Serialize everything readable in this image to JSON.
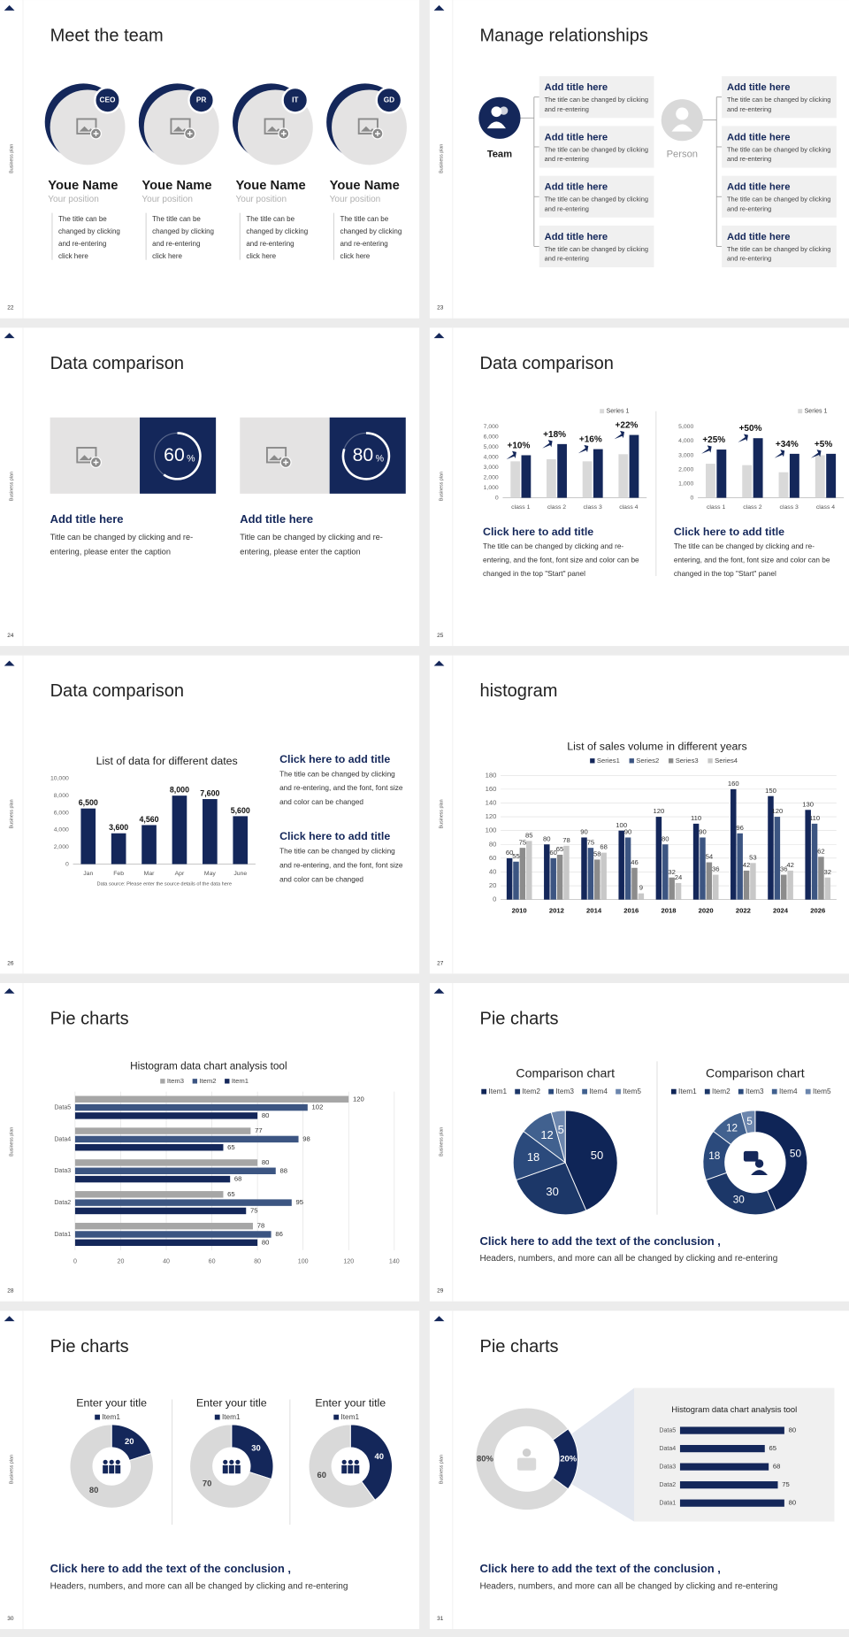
{
  "slides": [
    {
      "number": "22",
      "side_label": "Business plan",
      "title": "Meet the team",
      "members": [
        {
          "badge": "CEO",
          "name": "Youe Name",
          "position": "Your position",
          "text": [
            "The title can be",
            "changed by clicking",
            "and re-entering",
            "click here"
          ]
        },
        {
          "badge": "PR",
          "name": "Youe Name",
          "position": "Your position",
          "text": [
            "The title can be",
            "changed by clicking",
            "and re-entering",
            "click here"
          ]
        },
        {
          "badge": "IT",
          "name": "Youe Name",
          "position": "Your position",
          "text": [
            "The title can be",
            "changed by clicking",
            "and re-entering",
            "click here"
          ]
        },
        {
          "badge": "GD",
          "name": "Youe Name",
          "position": "Your position",
          "text": [
            "The title can be",
            "changed by clicking",
            "and re-entering",
            "click here"
          ]
        }
      ]
    },
    {
      "number": "23",
      "side_label": "Business plan",
      "title": "Manage relationships",
      "left_label": "Team",
      "right_label": "Person",
      "left_items": [
        {
          "title": "Add title here",
          "text": [
            "The title can be changed by clicking",
            "and re-entering"
          ]
        },
        {
          "title": "Add title here",
          "text": [
            "The title can be changed by clicking",
            "and re-entering"
          ]
        },
        {
          "title": "Add title here",
          "text": [
            "The title can be changed by clicking",
            "and re-entering"
          ]
        },
        {
          "title": "Add title here",
          "text": [
            "The title can be changed by clicking",
            "and re-entering"
          ]
        }
      ],
      "right_items": [
        {
          "title": "Add title here",
          "text": [
            "The title can be changed by clicking",
            "and re-entering"
          ]
        },
        {
          "title": "Add title here",
          "text": [
            "The title can be changed by clicking",
            "and re-entering"
          ]
        },
        {
          "title": "Add title here",
          "text": [
            "The title can be changed by clicking",
            "and re-entering"
          ]
        },
        {
          "title": "Add title here",
          "text": [
            "The title can be changed by clicking",
            "and re-entering"
          ]
        }
      ]
    },
    {
      "number": "24",
      "side_label": "Business plan",
      "title": "Data comparison",
      "panels": [
        {
          "title": "Add title here",
          "text": [
            "Title can be changed by clicking and re-",
            "entering, please enter the caption"
          ]
        },
        {
          "title": "Add title here",
          "text": [
            "Title can be changed by clicking and re-",
            "entering, please enter the caption"
          ]
        }
      ]
    },
    {
      "number": "25",
      "side_label": "Business plan",
      "title": "Data comparison",
      "panels": [
        {
          "title": "Click here to add title",
          "text": [
            "The title can be changed by clicking and re-",
            "entering, and the font, font size and color can be",
            "changed in the top \"Start\" panel"
          ]
        },
        {
          "title": "Click here to add title",
          "text": [
            "The title can be changed by clicking and re-",
            "entering, and the font, font size and color can be",
            "changed in the top \"Start\" panel"
          ]
        }
      ]
    },
    {
      "number": "26",
      "side_label": "Business plan",
      "title": "Data comparison",
      "panels": [
        {
          "title": "Click here to add title",
          "text": [
            "The title can be changed by clicking",
            "and re-entering, and the font, font size",
            "and color can be changed"
          ]
        },
        {
          "title": "Click here to add title",
          "text": [
            "The title can be changed by clicking",
            "and re-entering, and the font, font size",
            "and color can be changed"
          ]
        }
      ]
    },
    {
      "number": "27",
      "side_label": "Business plan",
      "title": "histogram"
    },
    {
      "number": "28",
      "side_label": "Business plan",
      "title": "Pie charts"
    },
    {
      "number": "29",
      "side_label": "Business plan",
      "title": "Pie charts",
      "conclusion": {
        "title": "Click here to add the text of the conclusion ,",
        "text": "Headers, numbers, and more can all be changed by clicking and re-entering"
      }
    },
    {
      "number": "30",
      "side_label": "Business plan",
      "title": "Pie charts",
      "conclusion": {
        "title": "Click here to add the text of the conclusion ,",
        "text": "Headers, numbers, and more can all be changed by clicking and re-entering"
      }
    },
    {
      "number": "31",
      "side_label": "Business plan",
      "title": "Pie charts",
      "conclusion": {
        "title": "Click here to add the text of the conclusion ,",
        "text": "Headers, numbers, and more can all be changed by clicking and re-entering"
      }
    }
  ],
  "chart_data": [
    {
      "type": "ring",
      "values": [
        60
      ],
      "unit": "%",
      "color": "#ffffff"
    },
    {
      "type": "ring",
      "values": [
        80
      ],
      "unit": "%",
      "color": "#ffffff"
    },
    {
      "type": "bar",
      "categories": [
        "class 1",
        "class 2",
        "class 3",
        "class 4"
      ],
      "series": [
        {
          "name": "Series 1",
          "color": "#d9d9d9",
          "values": [
            3600,
            3800,
            3600,
            4300
          ]
        },
        {
          "color": "#14275a",
          "values": [
            4200,
            5300,
            4800,
            6200
          ]
        }
      ],
      "annotations": [
        "+10%",
        "+18%",
        "+16%",
        "+22%"
      ],
      "ylim": [
        0,
        7000
      ],
      "yticks": [
        0,
        {
          "value": 1000,
          "label": "1,000"
        },
        {
          "value": 2000,
          "label": "2,000"
        },
        {
          "value": 3000,
          "label": "3,000"
        },
        {
          "value": 4000,
          "label": "4,000"
        },
        {
          "value": 5000,
          "label": "5,000"
        },
        {
          "value": 6000,
          "label": "6,000"
        },
        {
          "value": 7000,
          "label": "7,000"
        }
      ],
      "grid": false,
      "legend": "top-right"
    },
    {
      "type": "bar",
      "categories": [
        "class 1",
        "class 2",
        "class 3",
        "class 4"
      ],
      "series": [
        {
          "name": "Series 1",
          "color": "#d9d9d9",
          "values": [
            2400,
            2300,
            1800,
            3000
          ]
        },
        {
          "color": "#14275a",
          "values": [
            3400,
            4200,
            3100,
            3100
          ]
        }
      ],
      "annotations": [
        "+25%",
        "+50%",
        "+34%",
        "+5%"
      ],
      "ylim": [
        0,
        5000
      ],
      "yticks": [
        0,
        {
          "value": 1000,
          "label": "1,000"
        },
        {
          "value": 2000,
          "label": "2,000"
        },
        {
          "value": 3000,
          "label": "3,000"
        },
        {
          "value": 4000,
          "label": "4,000"
        },
        {
          "value": 5000,
          "label": "5,000"
        }
      ],
      "grid": false,
      "legend": "top-right"
    },
    {
      "type": "bar",
      "title": "List of data for different dates",
      "source": "Data source: Please enter the source details of the data here",
      "categories": [
        "Jan",
        "Feb",
        "Mar",
        "Apr",
        "May",
        "June"
      ],
      "values": [
        6500,
        3600,
        4560,
        8000,
        7600,
        5600
      ],
      "value_labels": [
        "6,500",
        "3,600",
        "4,560",
        "8,000",
        "7,600",
        "5,600"
      ],
      "color": "#14275a",
      "data_labels": true,
      "ylim": [
        0,
        10000
      ],
      "yticks": [
        0,
        {
          "value": 2000,
          "label": "2,000"
        },
        {
          "value": 4000,
          "label": "4,000"
        },
        {
          "value": 6000,
          "label": "6,000"
        },
        {
          "value": 8000,
          "label": "8,000"
        },
        {
          "value": 10000,
          "label": "10,000"
        }
      ],
      "grid": false
    },
    {
      "type": "bar",
      "title": "List of sales volume in different years",
      "categories": [
        "2010",
        "2012",
        "2014",
        "2016",
        "2018",
        "2020",
        "2022",
        "2024",
        "2026"
      ],
      "series": [
        {
          "name": "Series1",
          "color": "#14275a",
          "values": [
            60,
            80,
            90,
            100,
            120,
            110,
            160,
            150,
            130
          ]
        },
        {
          "name": "Series2",
          "color": "#3c5582",
          "values": [
            55,
            60,
            75,
            90,
            80,
            90,
            96,
            120,
            110
          ]
        },
        {
          "name": "Series3",
          "color": "#8c8c8c",
          "values": [
            75,
            65,
            58,
            46,
            32,
            54,
            42,
            36,
            62
          ]
        },
        {
          "name": "Series4",
          "color": "#c8c8c8",
          "values": [
            85,
            78,
            68,
            9,
            24,
            36,
            53,
            42,
            32
          ]
        }
      ],
      "data_labels": true,
      "ylim": [
        0,
        180
      ],
      "yticks": [
        0,
        20,
        40,
        60,
        80,
        100,
        120,
        140,
        160,
        180
      ],
      "grid": true,
      "legend": "top"
    },
    {
      "type": "bar",
      "orientation": "horizontal",
      "title": "Histogram data chart analysis tool",
      "categories": [
        "Data5",
        "Data4",
        "Data3",
        "Data2",
        "Data1"
      ],
      "series": [
        {
          "name": "Item3",
          "color": "#a6a6a6",
          "values": [
            120,
            77,
            80,
            65,
            78
          ]
        },
        {
          "name": "Item2",
          "color": "#3c5582",
          "values": [
            102,
            98,
            88,
            95,
            86
          ]
        },
        {
          "name": "Item1",
          "color": "#14275a",
          "values": [
            80,
            65,
            68,
            75,
            80
          ]
        }
      ],
      "data_labels": true,
      "xlim": [
        0,
        140
      ],
      "xticks": [
        0,
        20,
        40,
        60,
        80,
        100,
        120,
        140
      ],
      "grid": true,
      "legend": "top"
    },
    {
      "type": "pie",
      "title": "Comparison chart",
      "categories": [
        "Item1",
        "Item2",
        "Item3",
        "Item4",
        "Item5"
      ],
      "values": [
        50,
        30,
        18,
        12,
        5
      ],
      "colors": [
        "#0f2557",
        "#1c3768",
        "#2b4a7c",
        "#41618f",
        "#6c86ad"
      ],
      "data_labels": true,
      "legend": "top"
    },
    {
      "type": "donut",
      "title": "Comparison chart",
      "categories": [
        "Item1",
        "Item2",
        "Item3",
        "Item4",
        "Item5"
      ],
      "values": [
        50,
        30,
        18,
        12,
        5
      ],
      "colors": [
        "#0f2557",
        "#1c3768",
        "#2b4a7c",
        "#41618f",
        "#6c86ad"
      ],
      "data_labels": true,
      "legend": "top"
    },
    {
      "type": "donut",
      "title": "Enter your title",
      "categories": [
        "Item1",
        null
      ],
      "values": [
        20,
        80
      ],
      "colors": [
        "#14275a",
        "#d9d9d9"
      ],
      "data_labels": true,
      "legend": "top"
    },
    {
      "type": "donut",
      "title": "Enter your title",
      "categories": [
        "Item1",
        null
      ],
      "values": [
        30,
        70
      ],
      "colors": [
        "#14275a",
        "#d9d9d9"
      ],
      "data_labels": true,
      "legend": "top"
    },
    {
      "type": "donut",
      "title": "Enter your title",
      "categories": [
        "Item1",
        null
      ],
      "values": [
        40,
        60
      ],
      "colors": [
        "#14275a",
        "#d9d9d9"
      ],
      "data_labels": true,
      "legend": "top"
    },
    {
      "type": "donut",
      "values": [
        20,
        80
      ],
      "value_labels": [
        "20%",
        "80%"
      ],
      "colors": [
        "#14275a",
        "#d9d9d9"
      ],
      "data_labels": true
    },
    {
      "type": "bar",
      "orientation": "horizontal",
      "title": "Histogram data chart analysis tool",
      "categories": [
        "Data5",
        "Data4",
        "Data3",
        "Data2",
        "Data1"
      ],
      "values": [
        80,
        65,
        68,
        75,
        80
      ],
      "color": "#14275a",
      "data_labels": true,
      "xlim": [
        0,
        100
      ],
      "grid": false
    }
  ]
}
